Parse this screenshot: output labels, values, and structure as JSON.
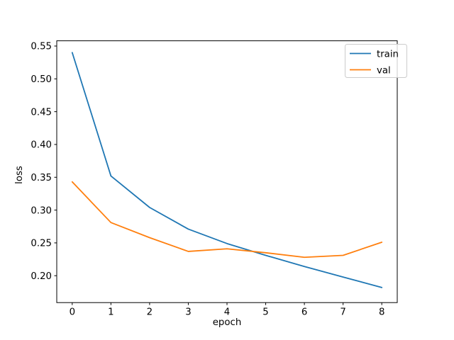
{
  "window": {
    "background": "#ffffff"
  },
  "chart_data": {
    "type": "line",
    "title": "",
    "xlabel": "epoch",
    "ylabel": "loss",
    "x": [
      0,
      1,
      2,
      3,
      4,
      5,
      6,
      7,
      8
    ],
    "series": [
      {
        "name": "train",
        "color": "#1f77b4",
        "values": [
          0.54,
          0.352,
          0.304,
          0.271,
          0.249,
          0.231,
          0.214,
          0.198,
          0.182
        ]
      },
      {
        "name": "val",
        "color": "#ff7f0e",
        "values": [
          0.343,
          0.281,
          0.258,
          0.237,
          0.241,
          0.235,
          0.228,
          0.231,
          0.251
        ]
      }
    ],
    "xlim": [
      -0.4,
      8.4
    ],
    "ylim": [
      0.159,
      0.558
    ],
    "xticks": {
      "values": [
        0,
        1,
        2,
        3,
        4,
        5,
        6,
        7,
        8
      ],
      "labels": [
        "0",
        "1",
        "2",
        "3",
        "4",
        "5",
        "6",
        "7",
        "8"
      ]
    },
    "yticks": {
      "values": [
        0.2,
        0.25,
        0.3,
        0.35,
        0.4,
        0.45,
        0.5,
        0.55
      ],
      "labels": [
        "0.20",
        "0.25",
        "0.30",
        "0.35",
        "0.40",
        "0.45",
        "0.50",
        "0.55"
      ]
    },
    "grid": false,
    "legend": {
      "position": "upper right",
      "entries": [
        "train",
        "val"
      ]
    },
    "axis_color": "#000000",
    "text_color": "#000000"
  }
}
